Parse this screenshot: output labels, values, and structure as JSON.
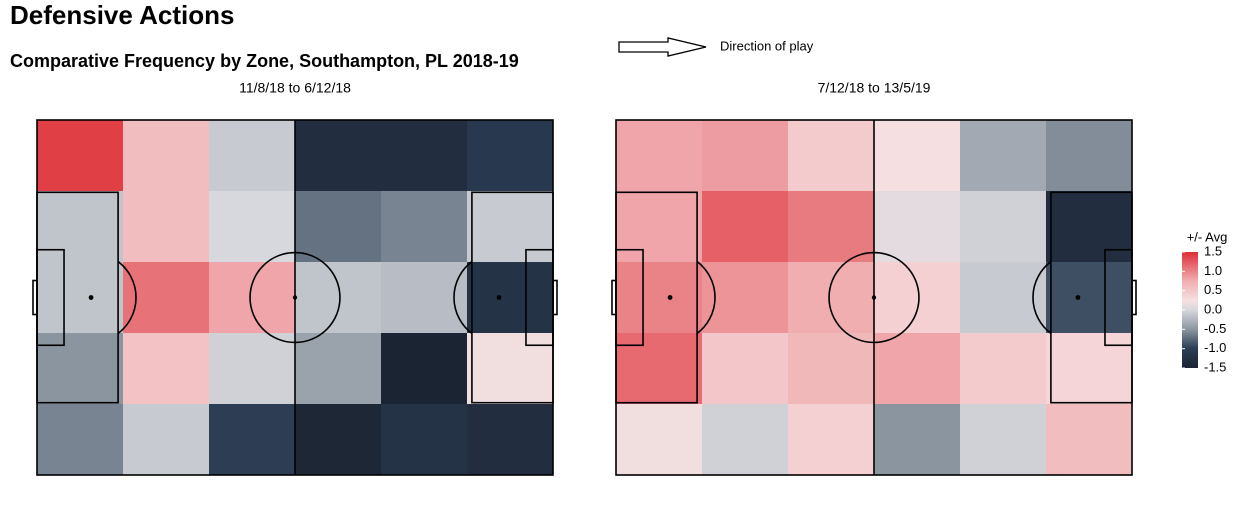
{
  "title": "Defensive Actions",
  "subtitle": "Comparative Frequency by Zone, Southampton, PL 2018-19",
  "annotation": "Direction of play",
  "colorbar": {
    "title": "+/- Avg",
    "lim": [
      -1.5,
      1.5
    ],
    "ticks": [
      1.5,
      {
        "value": 1,
        "label": "1.0"
      },
      0.5,
      {
        "value": 0,
        "label": "0.0"
      },
      -0.5,
      {
        "value": -1,
        "label": "-1.0"
      },
      -1.5
    ]
  },
  "chart_data": [
    {
      "type": "heatmap",
      "subtitle": "11/8/18 to 6/12/18",
      "values": [
        [
          1.4,
          0.6,
          -0.1,
          -1.3,
          -1.3,
          -1.1
        ],
        [
          -0.15,
          0.6,
          0.0,
          -0.7,
          -0.6,
          -0.1
        ],
        [
          -0.15,
          1.1,
          0.8,
          -0.15,
          -0.2,
          -1.2
        ],
        [
          -0.5,
          0.55,
          -0.05,
          -0.4,
          -1.5,
          0.2
        ],
        [
          -0.6,
          -0.1,
          -1.0,
          -1.45,
          -1.2,
          -1.3
        ]
      ]
    },
    {
      "type": "heatmap",
      "subtitle": "7/12/18 to 13/5/19",
      "values": [
        [
          0.8,
          0.85,
          0.45,
          0.25,
          -0.35,
          -0.55
        ],
        [
          0.8,
          1.2,
          1.05,
          0.1,
          -0.05,
          -1.3
        ],
        [
          1.0,
          0.9,
          0.75,
          0.4,
          -0.1,
          -0.9
        ],
        [
          1.15,
          0.5,
          0.65,
          0.8,
          0.45,
          0.35
        ],
        [
          0.2,
          -0.05,
          0.4,
          -0.5,
          -0.05,
          0.6
        ]
      ]
    }
  ]
}
